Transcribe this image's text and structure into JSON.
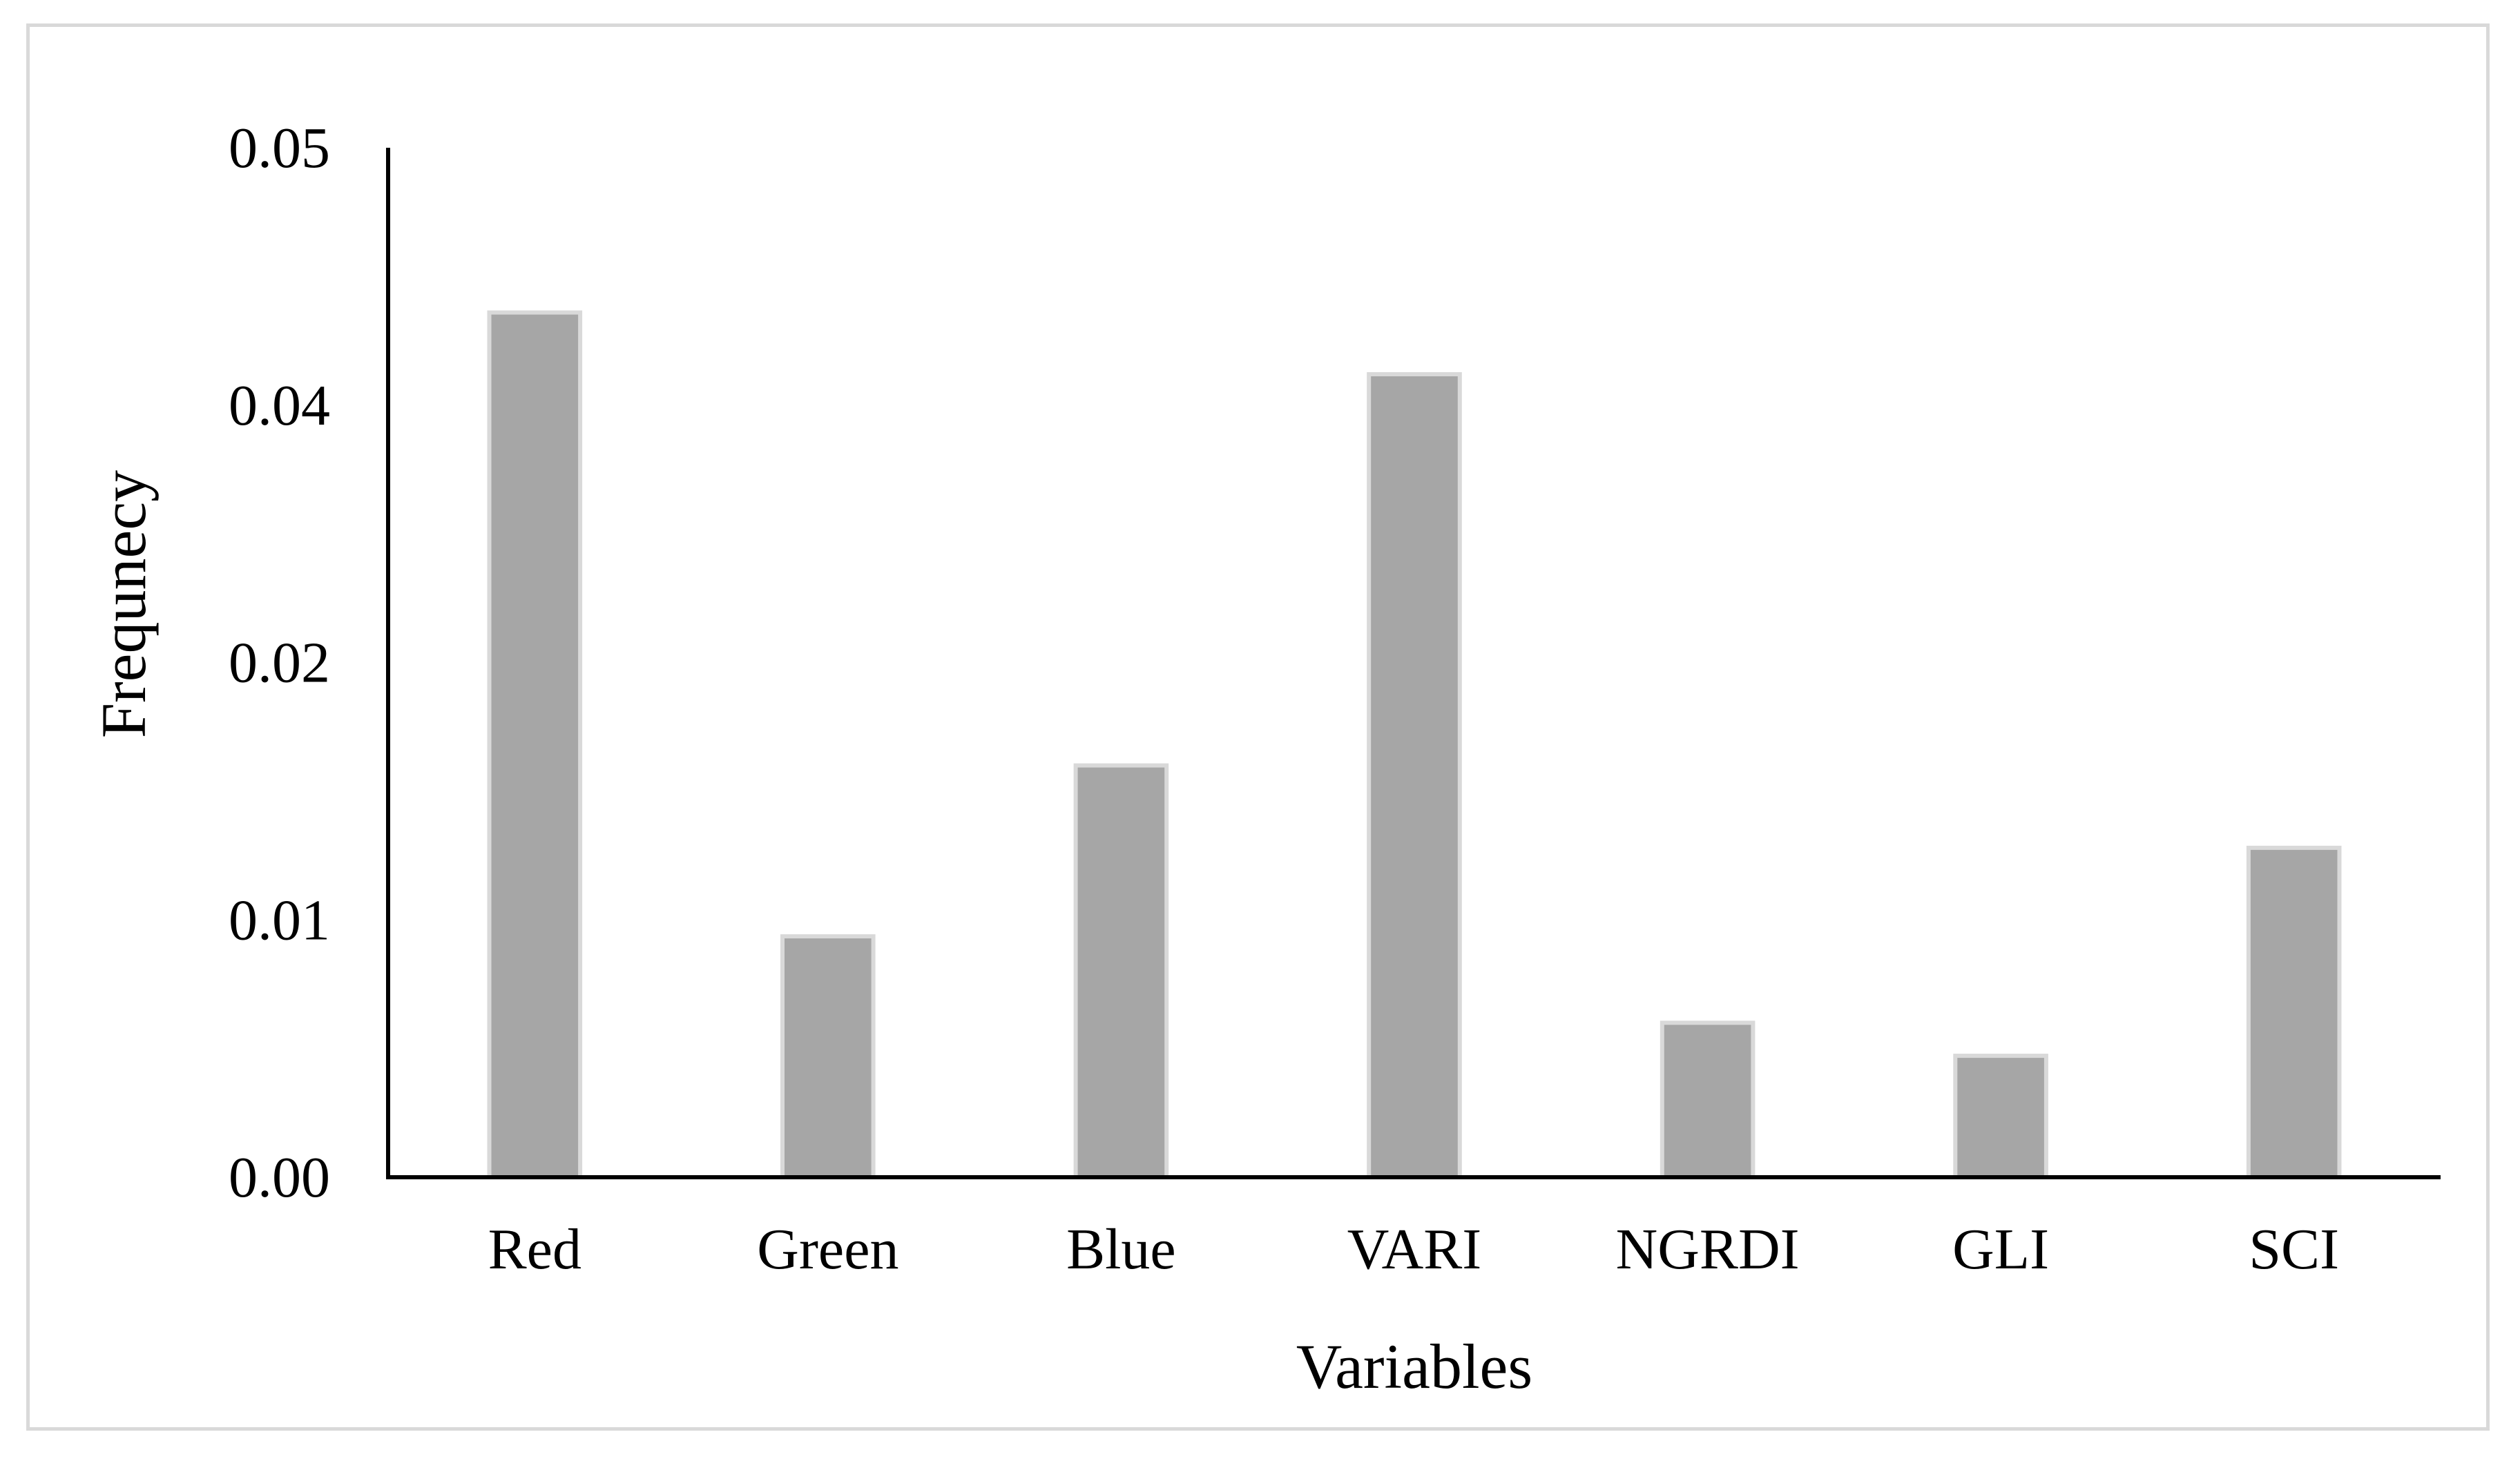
{
  "chart_data": {
    "type": "bar",
    "categories": [
      "Red",
      "Green",
      "Blue",
      "VARI",
      "NGRDI",
      "GLI",
      "SCI"
    ],
    "values": [
      0.042,
      0.0117,
      0.02,
      0.039,
      0.0075,
      0.0059,
      0.016
    ],
    "y_tick_labels": [
      "0.00",
      "0.01",
      "0.02",
      "0.04",
      "0.05"
    ],
    "title": "",
    "xlabel": "Variables",
    "ylabel": "Frequnecy",
    "ylim": [
      0,
      0.05
    ],
    "grid": false,
    "legend": "none",
    "colors": {
      "bar_fill": "#a6a6a6",
      "bar_edge": "#d9d9d9",
      "axis": "#000000",
      "frame": "#d9d9d9"
    }
  }
}
